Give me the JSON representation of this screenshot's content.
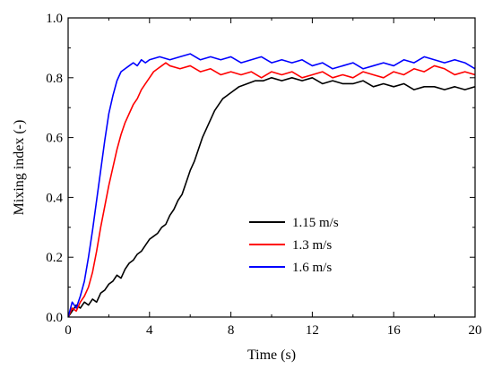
{
  "chart_data": {
    "type": "line",
    "title": "",
    "xlabel": "Time (s)",
    "ylabel": "Mixing index (-)",
    "xlim": [
      0,
      20
    ],
    "ylim": [
      0.0,
      1.0
    ],
    "xticks": [
      0,
      4,
      8,
      12,
      16,
      20
    ],
    "yticks": [
      0.0,
      0.2,
      0.4,
      0.6,
      0.8,
      1.0
    ],
    "xtick_labels": [
      "0",
      "4",
      "8",
      "12",
      "16",
      "20"
    ],
    "ytick_labels": [
      "0.0",
      "0.2",
      "0.4",
      "0.6",
      "0.8",
      "1.0"
    ],
    "grid": false,
    "legend_position": "center-right",
    "series": [
      {
        "name": "1.15 m/s",
        "color": "#000000",
        "x": [
          0,
          0.2,
          0.4,
          0.6,
          0.8,
          1.0,
          1.2,
          1.4,
          1.6,
          1.8,
          2.0,
          2.2,
          2.4,
          2.6,
          2.8,
          3.0,
          3.2,
          3.4,
          3.6,
          3.8,
          4.0,
          4.2,
          4.4,
          4.6,
          4.8,
          5.0,
          5.2,
          5.4,
          5.6,
          5.8,
          6.0,
          6.2,
          6.4,
          6.6,
          6.8,
          7.0,
          7.2,
          7.4,
          7.6,
          7.8,
          8.0,
          8.4,
          8.8,
          9.2,
          9.6,
          10.0,
          10.5,
          11.0,
          11.5,
          12.0,
          12.5,
          13.0,
          13.5,
          14.0,
          14.5,
          15.0,
          15.5,
          16.0,
          16.5,
          17.0,
          17.5,
          18.0,
          18.5,
          19.0,
          19.5,
          20.0
        ],
        "values": [
          0.0,
          0.02,
          0.04,
          0.03,
          0.05,
          0.04,
          0.06,
          0.05,
          0.08,
          0.09,
          0.11,
          0.12,
          0.14,
          0.13,
          0.16,
          0.18,
          0.19,
          0.21,
          0.22,
          0.24,
          0.26,
          0.27,
          0.28,
          0.3,
          0.31,
          0.34,
          0.36,
          0.39,
          0.41,
          0.45,
          0.49,
          0.52,
          0.56,
          0.6,
          0.63,
          0.66,
          0.69,
          0.71,
          0.73,
          0.74,
          0.75,
          0.77,
          0.78,
          0.79,
          0.79,
          0.8,
          0.79,
          0.8,
          0.79,
          0.8,
          0.78,
          0.79,
          0.78,
          0.78,
          0.79,
          0.77,
          0.78,
          0.77,
          0.78,
          0.76,
          0.77,
          0.77,
          0.76,
          0.77,
          0.76,
          0.77
        ]
      },
      {
        "name": "1.3 m/s",
        "color": "#ff0000",
        "x": [
          0,
          0.2,
          0.4,
          0.6,
          0.8,
          1.0,
          1.2,
          1.4,
          1.6,
          1.8,
          2.0,
          2.2,
          2.4,
          2.6,
          2.8,
          3.0,
          3.2,
          3.4,
          3.6,
          3.8,
          4.0,
          4.2,
          4.4,
          4.6,
          4.8,
          5.0,
          5.5,
          6.0,
          6.5,
          7.0,
          7.5,
          8.0,
          8.5,
          9.0,
          9.5,
          10.0,
          10.5,
          11.0,
          11.5,
          12.0,
          12.5,
          13.0,
          13.5,
          14.0,
          14.5,
          15.0,
          15.5,
          16.0,
          16.5,
          17.0,
          17.5,
          18.0,
          18.5,
          19.0,
          19.5,
          20.0
        ],
        "values": [
          0.0,
          0.03,
          0.02,
          0.05,
          0.07,
          0.1,
          0.15,
          0.22,
          0.3,
          0.37,
          0.44,
          0.5,
          0.56,
          0.61,
          0.65,
          0.68,
          0.71,
          0.73,
          0.76,
          0.78,
          0.8,
          0.82,
          0.83,
          0.84,
          0.85,
          0.84,
          0.83,
          0.84,
          0.82,
          0.83,
          0.81,
          0.82,
          0.81,
          0.82,
          0.8,
          0.82,
          0.81,
          0.82,
          0.8,
          0.81,
          0.82,
          0.8,
          0.81,
          0.8,
          0.82,
          0.81,
          0.8,
          0.82,
          0.81,
          0.83,
          0.82,
          0.84,
          0.83,
          0.81,
          0.82,
          0.81
        ]
      },
      {
        "name": "1.6 m/s",
        "color": "#0000ff",
        "x": [
          0,
          0.2,
          0.4,
          0.6,
          0.8,
          1.0,
          1.2,
          1.4,
          1.6,
          1.8,
          2.0,
          2.2,
          2.4,
          2.6,
          2.8,
          3.0,
          3.2,
          3.4,
          3.6,
          3.8,
          4.0,
          4.5,
          5.0,
          5.5,
          6.0,
          6.5,
          7.0,
          7.5,
          8.0,
          8.5,
          9.0,
          9.5,
          10.0,
          10.5,
          11.0,
          11.5,
          12.0,
          12.5,
          13.0,
          13.5,
          14.0,
          14.5,
          15.0,
          15.5,
          16.0,
          16.5,
          17.0,
          17.5,
          18.0,
          18.5,
          19.0,
          19.5,
          20.0
        ],
        "values": [
          0.0,
          0.05,
          0.03,
          0.07,
          0.12,
          0.2,
          0.29,
          0.39,
          0.49,
          0.59,
          0.68,
          0.74,
          0.79,
          0.82,
          0.83,
          0.84,
          0.85,
          0.84,
          0.86,
          0.85,
          0.86,
          0.87,
          0.86,
          0.87,
          0.88,
          0.86,
          0.87,
          0.86,
          0.87,
          0.85,
          0.86,
          0.87,
          0.85,
          0.86,
          0.85,
          0.86,
          0.84,
          0.85,
          0.83,
          0.84,
          0.85,
          0.83,
          0.84,
          0.85,
          0.84,
          0.86,
          0.85,
          0.87,
          0.86,
          0.85,
          0.86,
          0.85,
          0.83
        ]
      }
    ]
  }
}
